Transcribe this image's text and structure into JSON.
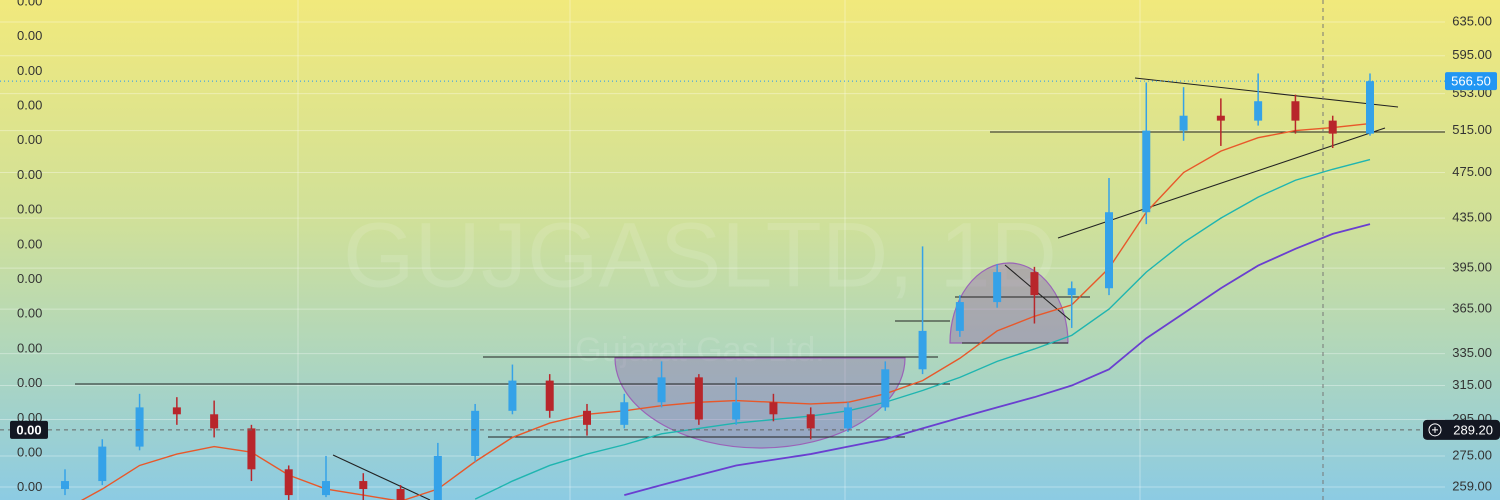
{
  "chart_data": {
    "type": "candlestick",
    "watermark": "GUJGASLTD, 1D",
    "watermark_subtitle": "Gujarat Gas Ltd.",
    "log_scale": true,
    "grid": true,
    "up_color": "#35a2e8",
    "down_color": "#b8262b",
    "ylim": [
      252.6,
      662.5
    ],
    "yticks": [
      {
        "value": 635,
        "label": "635.00"
      },
      {
        "value": 595,
        "label": "595.00"
      },
      {
        "value": 553,
        "label": "553.00"
      },
      {
        "value": 515,
        "label": "515.00"
      },
      {
        "value": 475,
        "label": "475.00"
      },
      {
        "value": 435,
        "label": "435.00"
      },
      {
        "value": 395,
        "label": "395.00"
      },
      {
        "value": 365,
        "label": "365.00"
      },
      {
        "value": 335,
        "label": "335.00"
      },
      {
        "value": 315,
        "label": "315.00"
      },
      {
        "value": 295,
        "label": "295.00"
      },
      {
        "value": 275,
        "label": "275.00"
      },
      {
        "value": 259,
        "label": "259.00"
      }
    ],
    "left_axis_labels": [
      "0.00",
      "0.00",
      "0.00",
      "0.00",
      "0.00",
      "0.00",
      "0.00",
      "0.00",
      "0.00",
      "0.00",
      "0.00",
      "0.00",
      "0.00",
      "0.00",
      "0.00"
    ],
    "last_price": {
      "value": 566.5,
      "label": "566.50",
      "color": "#2196f3"
    },
    "crosshair_price": {
      "value": 289.2,
      "label": "289.20"
    },
    "crosshair_left_label": "0.00",
    "candles": [
      {
        "open": 258,
        "high": 268,
        "low": 255,
        "close": 262
      },
      {
        "open": 262,
        "high": 284,
        "low": 260,
        "close": 280
      },
      {
        "open": 280,
        "high": 310,
        "low": 278,
        "close": 302
      },
      {
        "open": 302,
        "high": 308,
        "low": 292,
        "close": 298
      },
      {
        "open": 298,
        "high": 306,
        "low": 285,
        "close": 290
      },
      {
        "open": 290,
        "high": 292,
        "low": 262,
        "close": 268
      },
      {
        "open": 268,
        "high": 270,
        "low": 250,
        "close": 255
      },
      {
        "open": 255,
        "high": 275,
        "low": 254,
        "close": 262
      },
      {
        "open": 262,
        "high": 266,
        "low": 252,
        "close": 258
      },
      {
        "open": 258,
        "high": 260,
        "low": 248,
        "close": 250
      },
      {
        "open": 250,
        "high": 282,
        "low": 250,
        "close": 275
      },
      {
        "open": 275,
        "high": 304,
        "low": 272,
        "close": 300
      },
      {
        "open": 300,
        "high": 328,
        "low": 298,
        "close": 318
      },
      {
        "open": 318,
        "high": 322,
        "low": 296,
        "close": 300
      },
      {
        "open": 300,
        "high": 304,
        "low": 286,
        "close": 292
      },
      {
        "open": 292,
        "high": 310,
        "low": 290,
        "close": 305
      },
      {
        "open": 305,
        "high": 330,
        "low": 302,
        "close": 320
      },
      {
        "open": 320,
        "high": 322,
        "low": 292,
        "close": 295
      },
      {
        "open": 295,
        "high": 320,
        "low": 292,
        "close": 305
      },
      {
        "open": 305,
        "high": 310,
        "low": 294,
        "close": 298
      },
      {
        "open": 298,
        "high": 302,
        "low": 284,
        "close": 290
      },
      {
        "open": 290,
        "high": 305,
        "low": 288,
        "close": 302
      },
      {
        "open": 302,
        "high": 330,
        "low": 300,
        "close": 325
      },
      {
        "open": 325,
        "high": 412,
        "low": 322,
        "close": 350
      },
      {
        "open": 350,
        "high": 375,
        "low": 346,
        "close": 370
      },
      {
        "open": 370,
        "high": 398,
        "low": 366,
        "close": 392
      },
      {
        "open": 392,
        "high": 396,
        "low": 355,
        "close": 375
      },
      {
        "open": 375,
        "high": 385,
        "low": 352,
        "close": 380
      },
      {
        "open": 380,
        "high": 470,
        "low": 375,
        "close": 440
      },
      {
        "open": 440,
        "high": 565,
        "low": 430,
        "close": 515
      },
      {
        "open": 515,
        "high": 560,
        "low": 505,
        "close": 530
      },
      {
        "open": 530,
        "high": 548,
        "low": 500,
        "close": 525
      },
      {
        "open": 525,
        "high": 575,
        "low": 520,
        "close": 545
      },
      {
        "open": 545,
        "high": 552,
        "low": 512,
        "close": 525
      },
      {
        "open": 525,
        "high": 530,
        "low": 498,
        "close": 512
      },
      {
        "open": 512,
        "high": 575,
        "low": 510,
        "close": 566.5
      }
    ],
    "series": [
      {
        "color": "#e8582a",
        "values": [
          248,
          258,
          270,
          276,
          280,
          277,
          265,
          258,
          255,
          252,
          258,
          272,
          285,
          293,
          298,
          300,
          303,
          305,
          306,
          305,
          304,
          305,
          310,
          318,
          332,
          350,
          360,
          368,
          395,
          440,
          475,
          495,
          508,
          515,
          518,
          522
        ]
      },
      {
        "color": "#1fb5b0",
        "values": [
          null,
          null,
          null,
          null,
          null,
          null,
          null,
          null,
          null,
          null,
          null,
          253,
          262,
          270,
          276,
          281,
          287,
          290,
          293,
          295,
          297,
          300,
          305,
          312,
          320,
          330,
          338,
          347,
          365,
          392,
          415,
          435,
          453,
          468,
          478,
          487
        ]
      },
      {
        "color": "#6a3fd0",
        "values": [
          null,
          null,
          null,
          null,
          null,
          null,
          null,
          null,
          null,
          null,
          null,
          null,
          null,
          null,
          null,
          255,
          260,
          265,
          270,
          273,
          276,
          280,
          284,
          290,
          296,
          302,
          308,
          315,
          325,
          345,
          362,
          380,
          397,
          410,
          422,
          430
        ]
      }
    ]
  }
}
